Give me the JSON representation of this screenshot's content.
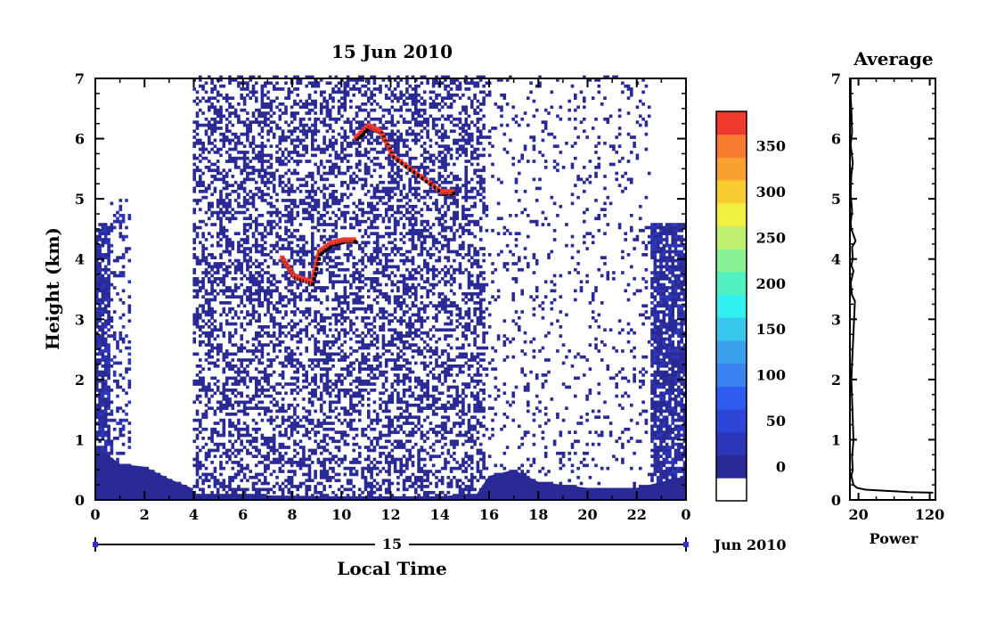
{
  "chart_data": [
    {
      "type": "heatmap",
      "title": "15 Jun 2010",
      "xlabel": "Local Time",
      "ylabel": "Height (km)",
      "xlim": [
        0,
        24
      ],
      "ylim": [
        0,
        7
      ],
      "x_tick_labels": [
        "0",
        "2",
        "4",
        "6",
        "8",
        "10",
        "12",
        "14",
        "16",
        "18",
        "20",
        "22",
        "0"
      ],
      "y_tick_labels": [
        "0",
        "1",
        "2",
        "3",
        "4",
        "5",
        "6",
        "7"
      ],
      "date_axis": {
        "day_label": "15",
        "month_label": "Jun 2010"
      },
      "colorbar": {
        "tick_labels": [
          "0",
          "50",
          "100",
          "150",
          "200",
          "250",
          "300",
          "350"
        ],
        "range": [
          0,
          375
        ],
        "bin_width": 25,
        "colors": [
          "#ffffff",
          "#2a2a96",
          "#2c36b8",
          "#2e46d8",
          "#2f5cf0",
          "#3a82f0",
          "#3aa0ee",
          "#38c8ee",
          "#30f0f0",
          "#50f0c0",
          "#8af096",
          "#c0f070",
          "#f0f040",
          "#f8cc30",
          "#f8a030",
          "#f87a30",
          "#f03a30"
        ]
      },
      "features": [
        {
          "name": "surface-layer",
          "values": [
            [
              0,
              0.9
            ],
            [
              1,
              0.6
            ],
            [
              2,
              0.55
            ],
            [
              3,
              0.35
            ],
            [
              3.9,
              0.2
            ],
            [
              4,
              0.1
            ],
            [
              6,
              0.08
            ],
            [
              10,
              0.06
            ],
            [
              14,
              0.06
            ],
            [
              15.5,
              0.1
            ],
            [
              16,
              0.4
            ],
            [
              17,
              0.5
            ],
            [
              18,
              0.3
            ],
            [
              20,
              0.2
            ],
            [
              22,
              0.2
            ],
            [
              23,
              0.3
            ],
            [
              24,
              0.4
            ]
          ]
        },
        {
          "name": "elevated-layer",
          "values": [
            [
              7.5,
              4.0
            ],
            [
              8,
              3.7
            ],
            [
              8.7,
              3.6
            ],
            [
              9,
              4.1
            ],
            [
              9.5,
              4.25
            ],
            [
              10,
              4.3
            ],
            [
              10.5,
              4.3
            ]
          ]
        },
        {
          "name": "upper-layer",
          "values": [
            [
              10.5,
              6.0
            ],
            [
              11,
              6.2
            ],
            [
              11.5,
              6.1
            ],
            [
              12,
              5.7
            ],
            [
              13,
              5.4
            ],
            [
              14,
              5.1
            ],
            [
              14.5,
              5.1
            ]
          ]
        }
      ]
    },
    {
      "type": "line",
      "title": "Average",
      "xlabel": "Power",
      "ylabel": "",
      "xlim": [
        8,
        128
      ],
      "ylim": [
        0,
        7
      ],
      "x_tick_labels": [
        "20",
        "120"
      ],
      "y_tick_labels": [
        "0",
        "1",
        "2",
        "3",
        "4",
        "5",
        "6",
        "7"
      ],
      "x": [
        9,
        9,
        10,
        11,
        9,
        12,
        10,
        9,
        11,
        9,
        10,
        16,
        11,
        12,
        10,
        13,
        9,
        11,
        15,
        10,
        13,
        11,
        12,
        10,
        11,
        12,
        13,
        18,
        30,
        60,
        90,
        125
      ],
      "y": [
        7,
        6.7,
        6.5,
        6.1,
        5.9,
        5.6,
        5.4,
        5.1,
        4.8,
        4.6,
        4.5,
        4.3,
        4.2,
        4.0,
        3.9,
        3.8,
        3.6,
        3.4,
        3.3,
        2.0,
        1.0,
        0.7,
        0.5,
        0.4,
        0.35,
        0.3,
        0.25,
        0.2,
        0.17,
        0.15,
        0.13,
        0.12
      ]
    }
  ]
}
